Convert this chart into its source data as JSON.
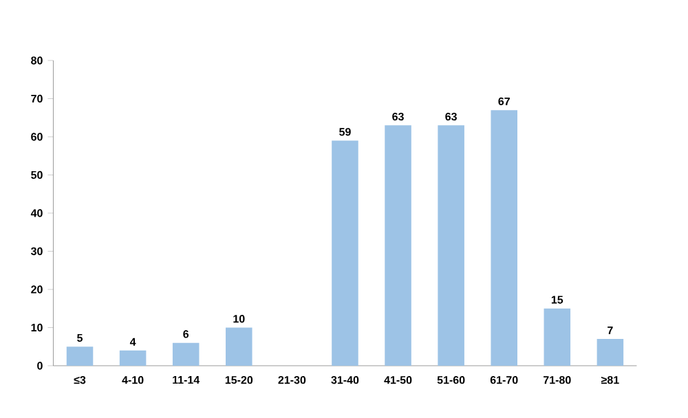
{
  "chart_data": {
    "type": "bar",
    "categories": [
      "≤3",
      "4-10",
      "11-14",
      "15-20",
      "21-30",
      "31-40",
      "41-50",
      "51-60",
      "61-70",
      "71-80",
      "≥81"
    ],
    "values": [
      5,
      4,
      6,
      10,
      null,
      59,
      63,
      63,
      67,
      15,
      7
    ],
    "color": "#9dc3e6",
    "ylim": [
      0,
      80
    ],
    "yticks": [
      0,
      10,
      20,
      30,
      40,
      50,
      60,
      70,
      80
    ],
    "data_labels": true
  }
}
